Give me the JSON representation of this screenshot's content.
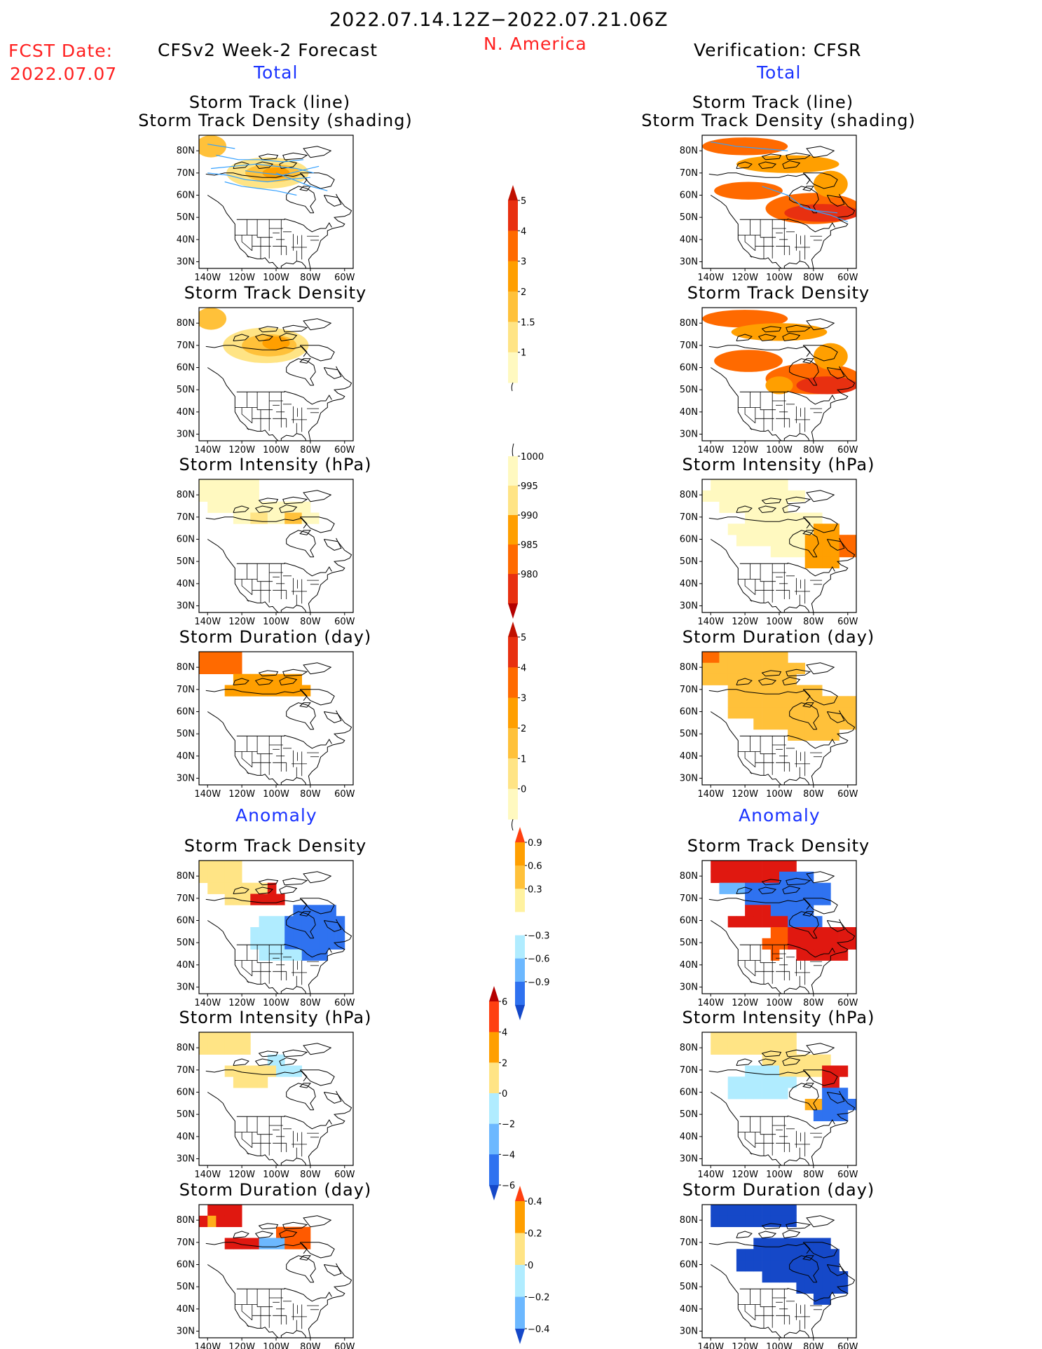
{
  "header": {
    "period": "2022.07.14.12Z−2022.07.21.06Z",
    "region": "N. America",
    "fcst_label": "FCST Date:",
    "fcst_date": "2022.07.07",
    "left_title": "CFSv2 Week-2 Forecast",
    "right_title": "Verification: CFSR"
  },
  "sections": {
    "total": "Total",
    "anomaly": "Anomaly"
  },
  "panel_titles": {
    "track_line": "Storm Track (line)",
    "track_shading": "Storm Track Density (shading)",
    "density": "Storm Track Density",
    "intensity": "Storm Intensity (hPa)",
    "duration": "Storm Duration (day)"
  },
  "axes": {
    "lat": [
      "80N",
      "70N",
      "60N",
      "50N",
      "40N",
      "30N"
    ],
    "lon": [
      "140W",
      "120W",
      "100W",
      "80W",
      "60W"
    ]
  },
  "colorbars": {
    "density_total": [
      "1",
      "1.5",
      "2",
      "3",
      "4",
      "5"
    ],
    "intensity_total": [
      "1000",
      "995",
      "990",
      "985",
      "980"
    ],
    "duration_total": [
      "0",
      "1",
      "2",
      "3",
      "4",
      "5"
    ],
    "density_anom": [
      "0.9",
      "0.6",
      "0.3",
      "−0.3",
      "−0.6",
      "−0.9"
    ],
    "intensity_anom": [
      "6",
      "4",
      "2",
      "0",
      "−2",
      "−4",
      "−6"
    ],
    "duration_anom": [
      "0.4",
      "0.2",
      "0",
      "−0.2",
      "−0.4"
    ]
  },
  "colors": {
    "total_scale": [
      "#fff9c0",
      "#ffe485",
      "#ffc13a",
      "#ff9f00",
      "#ff6a00",
      "#e83010",
      "#b40000"
    ],
    "anom_pos": [
      "#ffe485",
      "#ffad1a",
      "#ff5a00",
      "#e01810"
    ],
    "anom_neg": [
      "#b0ecff",
      "#6cb8ff",
      "#2f72f0",
      "#1548c8"
    ],
    "header_red": "#ff2020",
    "section_blue": "#1a33ff",
    "track_line": "#33a0ff"
  }
}
